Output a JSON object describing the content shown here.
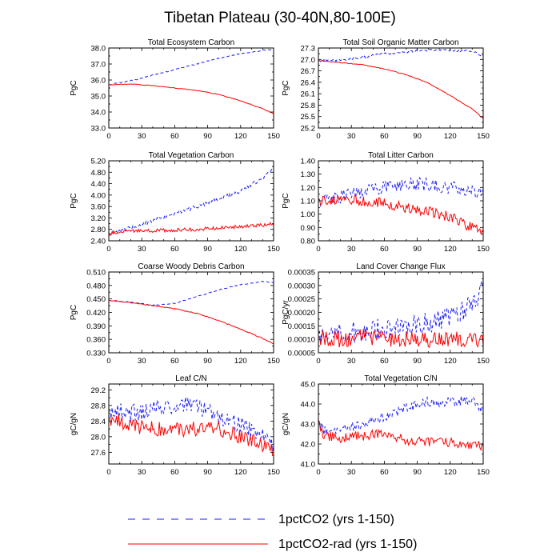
{
  "figure": {
    "title": "Tibetan Plateau (30-40N,80-100E)",
    "legend": [
      {
        "label": "1pctCO2 (yrs 1-150)",
        "color": "#1a1aff",
        "style": "dashed"
      },
      {
        "label": "1pctCO2-rad (yrs 1-150)",
        "color": "#ff0000",
        "style": "solid"
      }
    ]
  },
  "chart_data": [
    {
      "type": "line",
      "title": "Total Ecosystem Carbon",
      "ylabel": "PgC",
      "xlabel": "",
      "xlim": [
        0,
        150
      ],
      "ylim": [
        33.0,
        38.0
      ],
      "xticks": [
        0,
        30,
        60,
        90,
        120,
        150
      ],
      "yticks": [
        33.0,
        34.0,
        35.0,
        36.0,
        37.0,
        38.0
      ],
      "ytick_labels": [
        "33.0",
        "34.0",
        "35.0",
        "36.0",
        "37.0",
        "38.0"
      ],
      "series": [
        {
          "name": "1pctCO2 (yrs 1-150)",
          "color": "#1a1aff",
          "dashed": true,
          "noise": 0.03,
          "x": [
            0,
            20,
            40,
            60,
            80,
            100,
            120,
            140,
            150
          ],
          "y": [
            35.7,
            35.95,
            36.3,
            36.65,
            37.0,
            37.35,
            37.65,
            37.85,
            37.9
          ]
        },
        {
          "name": "1pctCO2-rad (yrs 1-150)",
          "color": "#ff0000",
          "dashed": false,
          "noise": 0.02,
          "x": [
            0,
            20,
            40,
            60,
            80,
            100,
            120,
            140,
            150
          ],
          "y": [
            35.7,
            35.75,
            35.65,
            35.5,
            35.35,
            35.1,
            34.7,
            34.2,
            33.9
          ]
        }
      ]
    },
    {
      "type": "line",
      "title": "Total Soil Organic Matter Carbon",
      "ylabel": "PgC",
      "xlabel": "",
      "xlim": [
        0,
        150
      ],
      "ylim": [
        25.2,
        27.3
      ],
      "xticks": [
        0,
        30,
        60,
        90,
        120,
        150
      ],
      "yticks": [
        25.2,
        25.5,
        25.8,
        26.1,
        26.4,
        26.7,
        27.0,
        27.3
      ],
      "ytick_labels": [
        "25.2",
        "25.5",
        "25.8",
        "26.1",
        "26.4",
        "26.7",
        "27.0",
        "27.3"
      ],
      "series": [
        {
          "name": "1pctCO2 (yrs 1-150)",
          "color": "#1a1aff",
          "dashed": true,
          "noise": 0.03,
          "x": [
            0,
            20,
            40,
            60,
            80,
            100,
            120,
            140,
            150
          ],
          "y": [
            26.97,
            26.98,
            27.05,
            27.15,
            27.2,
            27.24,
            27.25,
            27.2,
            27.1
          ]
        },
        {
          "name": "1pctCO2-rad (yrs 1-150)",
          "color": "#ff0000",
          "dashed": false,
          "noise": 0.01,
          "x": [
            0,
            20,
            40,
            60,
            80,
            100,
            120,
            140,
            150
          ],
          "y": [
            26.97,
            26.92,
            26.86,
            26.75,
            26.6,
            26.38,
            26.05,
            25.7,
            25.45
          ]
        }
      ]
    },
    {
      "type": "line",
      "title": "Total Vegetation Carbon",
      "ylabel": "PgC",
      "xlabel": "",
      "xlim": [
        0,
        150
      ],
      "ylim": [
        2.4,
        5.2
      ],
      "xticks": [
        0,
        30,
        60,
        90,
        120,
        150
      ],
      "yticks": [
        2.4,
        2.8,
        3.2,
        3.6,
        4.0,
        4.4,
        4.8,
        5.2
      ],
      "ytick_labels": [
        "2.40",
        "2.80",
        "3.20",
        "3.60",
        "4.00",
        "4.40",
        "4.80",
        "5.20"
      ],
      "series": [
        {
          "name": "1pctCO2 (yrs 1-150)",
          "color": "#1a1aff",
          "dashed": true,
          "noise": 0.07,
          "x": [
            0,
            20,
            40,
            60,
            80,
            100,
            120,
            140,
            150
          ],
          "y": [
            2.65,
            2.85,
            3.1,
            3.35,
            3.6,
            3.85,
            4.15,
            4.6,
            5.0
          ]
        },
        {
          "name": "1pctCO2-rad (yrs 1-150)",
          "color": "#ff0000",
          "dashed": false,
          "noise": 0.06,
          "x": [
            0,
            20,
            40,
            60,
            80,
            100,
            120,
            140,
            150
          ],
          "y": [
            2.65,
            2.75,
            2.75,
            2.78,
            2.8,
            2.85,
            2.9,
            2.95,
            3.0
          ]
        }
      ]
    },
    {
      "type": "line",
      "title": "Total Litter Carbon",
      "ylabel": "PgC",
      "xlabel": "",
      "xlim": [
        0,
        150
      ],
      "ylim": [
        0.8,
        1.4
      ],
      "xticks": [
        0,
        30,
        60,
        90,
        120,
        150
      ],
      "yticks": [
        0.8,
        0.9,
        1.0,
        1.1,
        1.2,
        1.3,
        1.4
      ],
      "ytick_labels": [
        "0.80",
        "0.90",
        "1.00",
        "1.10",
        "1.20",
        "1.30",
        "1.40"
      ],
      "series": [
        {
          "name": "1pctCO2 (yrs 1-150)",
          "color": "#1a1aff",
          "dashed": true,
          "noise": 0.05,
          "x": [
            0,
            20,
            40,
            60,
            80,
            100,
            120,
            140,
            150
          ],
          "y": [
            1.11,
            1.13,
            1.17,
            1.2,
            1.23,
            1.22,
            1.2,
            1.18,
            1.14
          ]
        },
        {
          "name": "1pctCO2-rad (yrs 1-150)",
          "color": "#ff0000",
          "dashed": false,
          "noise": 0.04,
          "x": [
            0,
            20,
            40,
            60,
            80,
            100,
            120,
            140,
            150
          ],
          "y": [
            1.11,
            1.11,
            1.1,
            1.08,
            1.05,
            1.02,
            0.98,
            0.9,
            0.85
          ]
        }
      ]
    },
    {
      "type": "line",
      "title": "Coarse Woody Debris Carbon",
      "ylabel": "PgC",
      "xlabel": "",
      "xlim": [
        0,
        150
      ],
      "ylim": [
        0.33,
        0.51
      ],
      "xticks": [
        0,
        30,
        60,
        90,
        120,
        150
      ],
      "yticks": [
        0.33,
        0.36,
        0.39,
        0.42,
        0.45,
        0.48,
        0.51
      ],
      "ytick_labels": [
        "0.330",
        "0.360",
        "0.390",
        "0.420",
        "0.450",
        "0.480",
        "0.510"
      ],
      "series": [
        {
          "name": "1pctCO2 (yrs 1-150)",
          "color": "#1a1aff",
          "dashed": true,
          "noise": 0.001,
          "x": [
            0,
            20,
            40,
            60,
            80,
            100,
            120,
            140,
            150
          ],
          "y": [
            0.447,
            0.443,
            0.436,
            0.44,
            0.455,
            0.47,
            0.482,
            0.489,
            0.487
          ]
        },
        {
          "name": "1pctCO2-rad (yrs 1-150)",
          "color": "#ff0000",
          "dashed": false,
          "noise": 0.001,
          "x": [
            0,
            20,
            40,
            60,
            80,
            100,
            120,
            140,
            150
          ],
          "y": [
            0.447,
            0.442,
            0.435,
            0.428,
            0.418,
            0.402,
            0.383,
            0.362,
            0.35
          ]
        }
      ]
    },
    {
      "type": "line",
      "title": "Land Cover Change Flux",
      "ylabel": "PgC/yr",
      "xlabel": "",
      "xlim": [
        0,
        150
      ],
      "ylim": [
        5e-05,
        0.00035
      ],
      "xticks": [
        0,
        30,
        60,
        90,
        120,
        150
      ],
      "yticks": [
        5e-05,
        0.0001,
        0.00015,
        0.0002,
        0.00025,
        0.0003,
        0.00035
      ],
      "ytick_labels": [
        "0.00005",
        "0.00010",
        "0.00015",
        "0.00020",
        "0.00025",
        "0.00030",
        "0.00035"
      ],
      "series": [
        {
          "name": "1pctCO2 (yrs 1-150)",
          "color": "#1a1aff",
          "dashed": true,
          "noise": 4e-05,
          "x": [
            0,
            20,
            40,
            60,
            80,
            100,
            120,
            140,
            150
          ],
          "y": [
            0.00013,
            0.00012,
            0.00013,
            0.00014,
            0.00015,
            0.00016,
            0.00018,
            0.00023,
            0.0003
          ]
        },
        {
          "name": "1pctCO2-rad (yrs 1-150)",
          "color": "#ff0000",
          "dashed": false,
          "noise": 3e-05,
          "x": [
            0,
            20,
            40,
            60,
            80,
            100,
            120,
            140,
            150
          ],
          "y": [
            0.00011,
            0.0001,
            0.00011,
            0.0001,
            0.0001,
            0.0001,
            0.0001,
            0.0001,
            0.0001
          ]
        }
      ]
    },
    {
      "type": "line",
      "title": "Leaf C/N",
      "ylabel": "gC/gN",
      "xlabel": "",
      "xlim": [
        0,
        150
      ],
      "ylim": [
        27.3,
        29.35
      ],
      "xticks": [
        0,
        30,
        60,
        90,
        120,
        150
      ],
      "yticks": [
        27.6,
        28.0,
        28.4,
        28.8,
        29.2
      ],
      "ytick_labels": [
        "27.6",
        "28.0",
        "28.4",
        "28.8",
        "29.2"
      ],
      "series": [
        {
          "name": "1pctCO2 (yrs 1-150)",
          "color": "#1a1aff",
          "dashed": true,
          "noise": 0.22,
          "x": [
            0,
            20,
            40,
            60,
            80,
            100,
            120,
            140,
            150
          ],
          "y": [
            28.7,
            28.6,
            28.7,
            28.8,
            28.8,
            28.5,
            28.3,
            28.0,
            27.7
          ]
        },
        {
          "name": "1pctCO2-rad (yrs 1-150)",
          "color": "#ff0000",
          "dashed": false,
          "noise": 0.2,
          "x": [
            0,
            20,
            40,
            60,
            80,
            100,
            120,
            140,
            150
          ],
          "y": [
            28.5,
            28.3,
            28.2,
            28.2,
            28.2,
            28.2,
            28.0,
            27.8,
            27.6
          ]
        }
      ]
    },
    {
      "type": "line",
      "title": "Total Vegetation C/N",
      "ylabel": "gC/gN",
      "xlabel": "",
      "xlim": [
        0,
        150
      ],
      "ylim": [
        41.0,
        45.0
      ],
      "xticks": [
        0,
        30,
        60,
        90,
        120,
        150
      ],
      "yticks": [
        41.0,
        42.0,
        43.0,
        44.0,
        45.0
      ],
      "ytick_labels": [
        "41.0",
        "42.0",
        "43.0",
        "44.0",
        "45.0"
      ],
      "series": [
        {
          "name": "1pctCO2 (yrs 1-150)",
          "color": "#1a1aff",
          "dashed": true,
          "noise": 0.25,
          "x": [
            0,
            5,
            20,
            40,
            60,
            80,
            100,
            120,
            140,
            150
          ],
          "y": [
            43.2,
            42.7,
            42.7,
            43.0,
            43.4,
            43.8,
            44.1,
            44.1,
            44.2,
            43.7
          ]
        },
        {
          "name": "1pctCO2-rad (yrs 1-150)",
          "color": "#ff0000",
          "dashed": false,
          "noise": 0.25,
          "x": [
            0,
            5,
            20,
            40,
            60,
            80,
            100,
            120,
            140,
            150
          ],
          "y": [
            43.2,
            42.4,
            42.3,
            42.4,
            42.5,
            42.2,
            42.1,
            42.1,
            41.9,
            41.9
          ]
        }
      ]
    }
  ]
}
